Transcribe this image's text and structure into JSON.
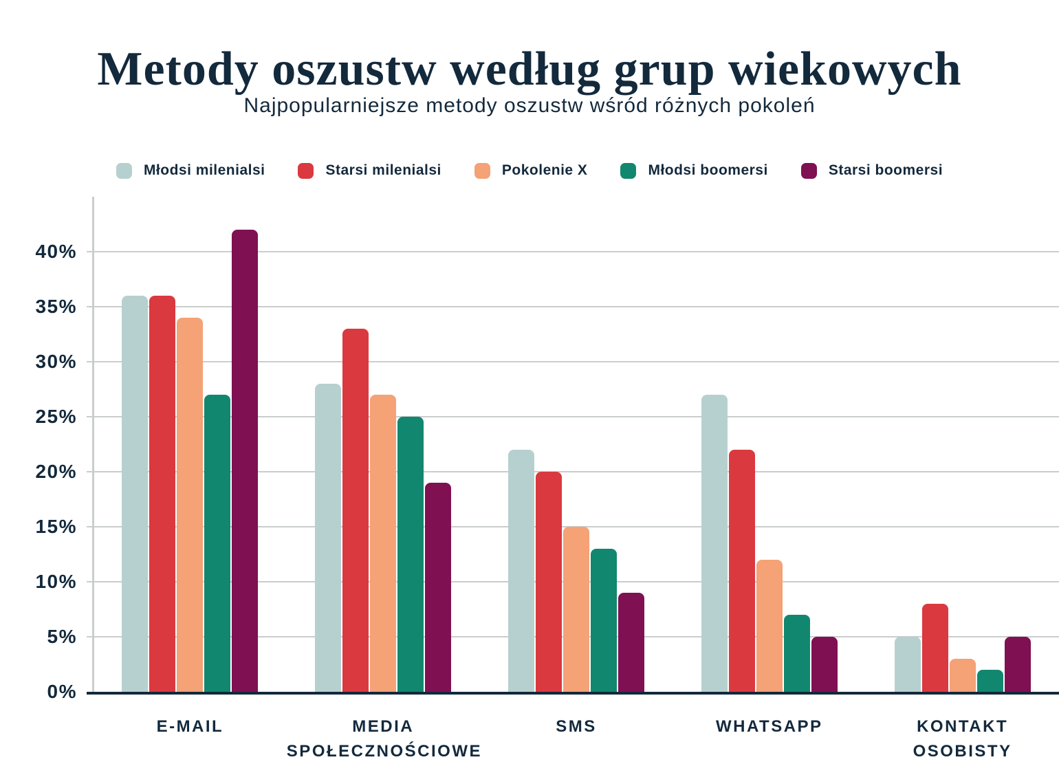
{
  "colors": {
    "text": "#13293C",
    "grid": "#C9CDCC",
    "axis": "#13293C",
    "background": "#FFFFFF"
  },
  "chart_data": {
    "type": "bar",
    "title": "Metody oszustw według grup wiekowych",
    "subtitle": "Najpopularniejsze metody oszustw wśród różnych pokoleń",
    "unit": "%",
    "categories": [
      [
        "E-MAIL"
      ],
      [
        "MEDIA",
        "SPOŁECZNOŚCIOWE"
      ],
      [
        "SMS"
      ],
      [
        "WHATSAPP"
      ],
      [
        "KONTAKT",
        "OSOBISTY"
      ]
    ],
    "series": [
      {
        "name": "Młodsi milenialsi",
        "color": "#B6D0CF",
        "values": [
          36,
          28,
          22,
          27,
          5
        ]
      },
      {
        "name": "Starsi milenialsi",
        "color": "#DA3940",
        "values": [
          36,
          33,
          20,
          22,
          8
        ]
      },
      {
        "name": "Pokolenie X",
        "color": "#F4A276",
        "values": [
          34,
          27,
          15,
          12,
          3
        ]
      },
      {
        "name": "Młodsi boomersi",
        "color": "#12876F",
        "values": [
          27,
          25,
          13,
          7,
          2
        ]
      },
      {
        "name": "Starsi boomersi",
        "color": "#7F1052",
        "values": [
          42,
          19,
          9,
          5,
          5
        ]
      }
    ],
    "y_ticks": [
      0,
      5,
      10,
      15,
      20,
      25,
      30,
      35,
      40
    ],
    "y_tick_suffix": "%",
    "ylim": [
      0,
      45
    ],
    "grid": true,
    "legend_position": "top"
  }
}
